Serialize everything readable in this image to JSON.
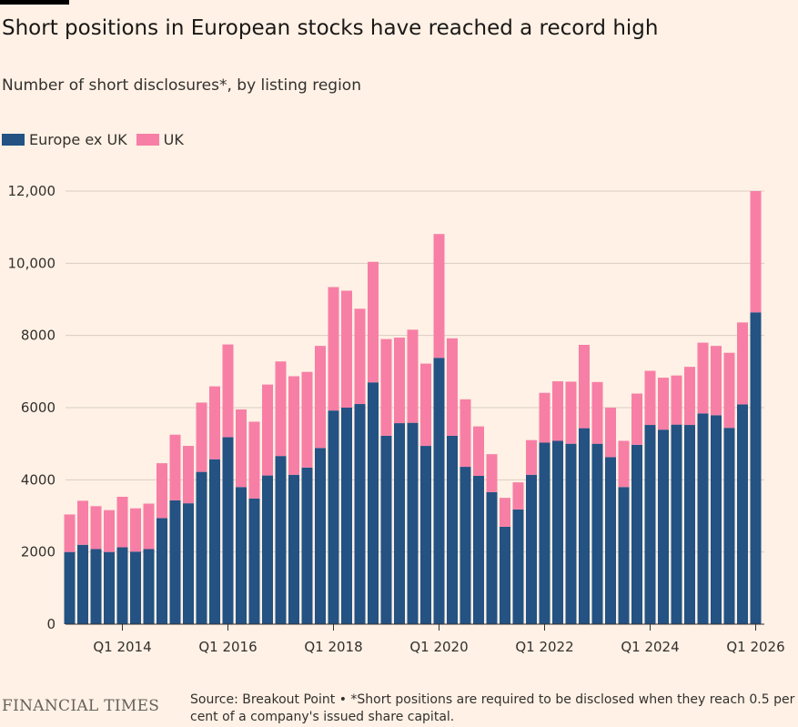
{
  "header": {
    "title": "Short positions in European stocks have reached a record high",
    "subtitle": "Number of short disclosures*, by listing region"
  },
  "footer": {
    "brand": "FINANCIAL TIMES",
    "source": "Source: Breakout Point • *Short positions are required to be disclosed when they reach 0.5 per cent of a company's issued share capital."
  },
  "colors": {
    "background": "#fff1e5",
    "europe_ex_uk": "#235283",
    "uk": "#f77fa6",
    "gridline": "#d9cdc3",
    "axis": "#33302e"
  },
  "chart_data": {
    "type": "bar",
    "stacked": true,
    "title": "Short positions in European stocks have reached a record high",
    "subtitle": "Number of short disclosures*, by listing region",
    "legend": {
      "placement": "top-left",
      "entries": [
        "Europe ex UK",
        "UK"
      ]
    },
    "grid": true,
    "ylim": [
      0,
      12000
    ],
    "yticks": [
      0,
      2000,
      4000,
      6000,
      8000,
      10000,
      12000
    ],
    "ytick_labels": [
      "0",
      "2000",
      "4000",
      "6000",
      "8000",
      "10,000",
      "12,000"
    ],
    "xtick_labels": [
      {
        "label": "Q1 2014",
        "category": "Q1 2014"
      },
      {
        "label": "Q1 2016",
        "category": "Q1 2016"
      },
      {
        "label": "Q1 2018",
        "category": "Q1 2018"
      },
      {
        "label": "Q1 2020",
        "category": "Q1 2020"
      },
      {
        "label": "Q1 2022",
        "category": "Q1 2022"
      },
      {
        "label": "Q1 2024",
        "category": "Q1 2024"
      },
      {
        "label": "Q1 2026",
        "category": "Q1 2026"
      }
    ],
    "categories": [
      "Q1 2013",
      "Q2 2013",
      "Q3 2013",
      "Q4 2013",
      "Q1 2014",
      "Q2 2014",
      "Q3 2014",
      "Q4 2014",
      "Q1 2015",
      "Q2 2015",
      "Q3 2015",
      "Q4 2015",
      "Q1 2016",
      "Q2 2016",
      "Q3 2016",
      "Q4 2016",
      "Q1 2017",
      "Q2 2017",
      "Q3 2017",
      "Q4 2017",
      "Q1 2018",
      "Q2 2018",
      "Q3 2018",
      "Q4 2018",
      "Q1 2019",
      "Q2 2019",
      "Q3 2019",
      "Q4 2019",
      "Q1 2020",
      "Q2 2020",
      "Q3 2020",
      "Q4 2020",
      "Q1 2021",
      "Q2 2021",
      "Q3 2021",
      "Q4 2021",
      "Q1 2022",
      "Q2 2022",
      "Q3 2022",
      "Q4 2022",
      "Q1 2023",
      "Q2 2023",
      "Q3 2023",
      "Q4 2023",
      "Q1 2024",
      "Q2 2024",
      "Q3 2024",
      "Q4 2024",
      "Q1 2025",
      "Q2 2025",
      "Q3 2025",
      "Q4 2025",
      "Q1 2026"
    ],
    "series": [
      {
        "name": "Europe ex UK",
        "color": "#235283",
        "values": [
          2000,
          2200,
          2080,
          2000,
          2130,
          2010,
          2080,
          2940,
          3430,
          3350,
          4220,
          4570,
          5180,
          3800,
          3480,
          4120,
          4660,
          4140,
          4340,
          4880,
          5920,
          6000,
          6100,
          6700,
          5220,
          5570,
          5580,
          4940,
          7380,
          5220,
          4360,
          4110,
          3660,
          2700,
          3180,
          4140,
          5030,
          5080,
          5000,
          5430,
          5000,
          4630,
          3800,
          4970,
          5520,
          5390,
          5530,
          5520,
          5840,
          5790,
          5440,
          6090,
          8640
        ]
      },
      {
        "name": "UK",
        "color": "#f77fa6",
        "values": [
          1040,
          1220,
          1190,
          1160,
          1400,
          1200,
          1260,
          1520,
          1820,
          1590,
          1920,
          2020,
          2570,
          2150,
          2130,
          2520,
          2620,
          2730,
          2650,
          2830,
          3420,
          3240,
          2640,
          3340,
          2680,
          2370,
          2580,
          2280,
          3430,
          2700,
          1870,
          1370,
          1050,
          800,
          750,
          960,
          1380,
          1650,
          1720,
          2310,
          1710,
          1370,
          1280,
          1420,
          1500,
          1440,
          1360,
          1610,
          1960,
          1920,
          2080,
          2270,
          3360
        ]
      }
    ]
  }
}
